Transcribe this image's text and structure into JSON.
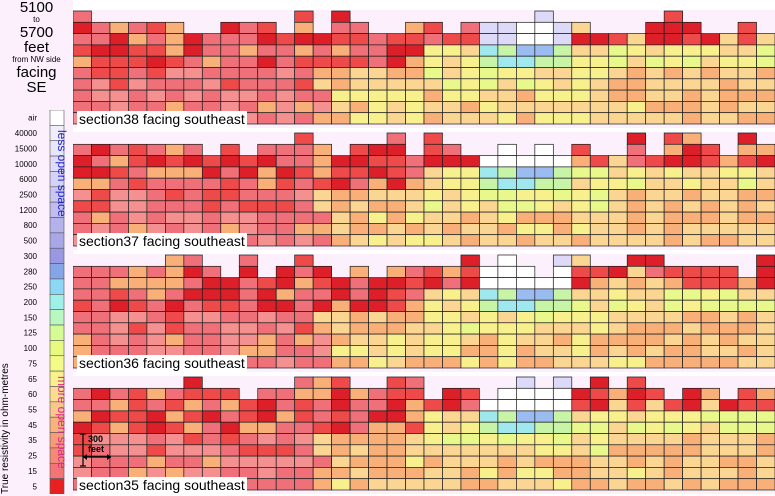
{
  "header": {
    "line1": "5100",
    "line2": "to",
    "line3": "5700",
    "line4": "feet",
    "line5": "from NW side",
    "line6": "facing",
    "line7": "SE"
  },
  "legend": {
    "axis_label": "True resistivity in ohm-metres",
    "less_open": "less open space",
    "more_open": "more open space",
    "items": [
      {
        "label": "air",
        "color": "#ffffff"
      },
      {
        "label": "40000",
        "color": "#f0eefc"
      },
      {
        "label": "15000",
        "color": "#e8e6fb"
      },
      {
        "label": "10000",
        "color": "#dedcf8"
      },
      {
        "label": "6000",
        "color": "#d4d2f6"
      },
      {
        "label": "2500",
        "color": "#c9c7f2"
      },
      {
        "label": "1200",
        "color": "#c0bdee"
      },
      {
        "label": "800",
        "color": "#b5b2eb"
      },
      {
        "label": "500",
        "color": "#a9a7e8"
      },
      {
        "label": "300",
        "color": "#9a98e2"
      },
      {
        "label": "280",
        "color": "#86a4e8"
      },
      {
        "label": "250",
        "color": "#8cd8f4"
      },
      {
        "label": "200",
        "color": "#9ef0e8"
      },
      {
        "label": "150",
        "color": "#b8f8c0"
      },
      {
        "label": "125",
        "color": "#d4fb94"
      },
      {
        "label": "100",
        "color": "#e6fa80"
      },
      {
        "label": "75",
        "color": "#f4fa86"
      },
      {
        "label": "65",
        "color": "#fbf08e"
      },
      {
        "label": "60",
        "color": "#fcdc90"
      },
      {
        "label": "55",
        "color": "#fbc68a"
      },
      {
        "label": "45",
        "color": "#f8b27c"
      },
      {
        "label": "35",
        "color": "#f69c78"
      },
      {
        "label": "25",
        "color": "#f48a76"
      },
      {
        "label": "15",
        "color": "#f27474"
      },
      {
        "label": "5",
        "color": "#e82020"
      }
    ]
  },
  "scale_bar": {
    "value": "300",
    "unit": "feet"
  },
  "chart_data": [
    {
      "type": "heatmap",
      "title": "section38 facing southeast",
      "columns": 38,
      "rows": 10
    },
    {
      "type": "heatmap",
      "title": "section37 facing southeast",
      "columns": 38,
      "rows": 10
    },
    {
      "type": "heatmap",
      "title": "section36 facing southeast",
      "columns": 38,
      "rows": 10
    },
    {
      "type": "heatmap",
      "title": "section35 facing southeast",
      "columns": 38,
      "rows": 10
    }
  ]
}
